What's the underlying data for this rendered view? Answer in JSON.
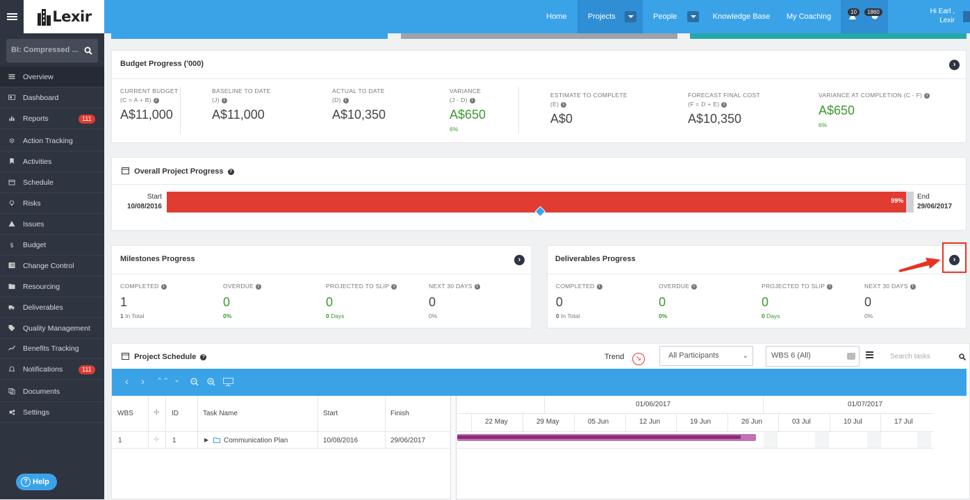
{
  "header": {
    "logo": "Lexir",
    "nav": {
      "home": "Home",
      "projects": "Projects",
      "people": "People",
      "knowledge": "Knowledge Base",
      "coaching": "My Coaching"
    },
    "badge_alerts": "10",
    "badge_notifications": "1860",
    "greeting": "Hi Earl ,",
    "user": "Lexir"
  },
  "sidebar": {
    "search_value": "BI: Compressed ...",
    "items": [
      {
        "label": "Overview",
        "icon": "list-icon"
      },
      {
        "label": "Dashboard",
        "icon": "dashboard-icon"
      },
      {
        "label": "Reports",
        "icon": "bar-chart-icon",
        "badge": "111"
      },
      {
        "label": "Action Tracking",
        "icon": "crosshair-icon"
      },
      {
        "label": "Activities",
        "icon": "bookmark-icon"
      },
      {
        "label": "Schedule",
        "icon": "calendar-icon"
      },
      {
        "label": "Risks",
        "icon": "lightbulb-icon"
      },
      {
        "label": "Issues",
        "icon": "warning-icon"
      },
      {
        "label": "Budget",
        "icon": "dollar-icon"
      },
      {
        "label": "Change Control",
        "icon": "list-alt-icon"
      },
      {
        "label": "Resourcing",
        "icon": "folder-icon"
      },
      {
        "label": "Deliverables",
        "icon": "truck-icon"
      },
      {
        "label": "Quality Management",
        "icon": "tag-icon"
      },
      {
        "label": "Benefits Tracking",
        "icon": "line-chart-icon"
      },
      {
        "label": "Notifications",
        "icon": "bell-icon",
        "badge": "111"
      },
      {
        "label": "Documents",
        "icon": "copy-icon"
      },
      {
        "label": "Settings",
        "icon": "cogs-icon"
      }
    ],
    "help": "Help"
  },
  "budget": {
    "title": "Budget Progress ('000)",
    "items": [
      {
        "label": "CURRENT BUDGET",
        "sub": "(C = A + B)",
        "value": "A$11,000"
      },
      {
        "label": "BASELINE TO DATE",
        "sub": "(J)",
        "value": "A$11,000"
      },
      {
        "label": "ACTUAL TO DATE",
        "sub": "(D)",
        "value": "A$10,350"
      },
      {
        "label": "VARIANCE",
        "sub": "(J - D)",
        "value": "A$650",
        "pct": "6%"
      },
      {
        "label": "ESTIMATE TO COMPLETE",
        "sub": "(E)",
        "value": "A$0"
      },
      {
        "label": "FORECAST FINAL COST",
        "sub": "(F = D + E)",
        "value": "A$10,350"
      },
      {
        "label": "VARIANCE AT COMPLETION (C - F)",
        "sub": "",
        "value": "A$650",
        "pct": "6%"
      }
    ]
  },
  "overall": {
    "title": "Overall Project Progress",
    "start_label": "Start",
    "start_date": "10/08/2016",
    "end_label": "End",
    "end_date": "29/06/2017",
    "progress": 0.99,
    "progress_text": "99%",
    "today_marker": 0.5
  },
  "milestones": {
    "title": "Milestones Progress",
    "items": [
      {
        "label": "COMPLETED",
        "value": "1",
        "sub_strong": "1",
        "sub": " In Total"
      },
      {
        "label": "OVERDUE",
        "value": "0",
        "sub_strong": "0%",
        "sub": ""
      },
      {
        "label": "PROJECTED TO SLIP",
        "value": "0",
        "sub_strong": "0",
        "sub": " Days"
      },
      {
        "label": "NEXT 30 DAYS",
        "value": "0",
        "sub_strong": "",
        "sub": "0%"
      }
    ]
  },
  "deliverables": {
    "title": "Deliverables Progress",
    "items": [
      {
        "label": "COMPLETED",
        "value": "0",
        "sub_strong": "0",
        "sub": " In Total"
      },
      {
        "label": "OVERDUE",
        "value": "0",
        "sub_strong": "0%",
        "sub": ""
      },
      {
        "label": "PROJECTED TO SLIP",
        "value": "0",
        "sub_strong": "0",
        "sub": " Days"
      },
      {
        "label": "NEXT 30 DAYS",
        "value": "0",
        "sub_strong": "",
        "sub": "0%"
      }
    ]
  },
  "schedule": {
    "title": "Project Schedule",
    "trend": "Trend",
    "participants": "All Participants",
    "wbs": "WBS 6 (All)",
    "search_placeholder": "Search tasks",
    "columns": {
      "wbs": "WBS",
      "id": "ID",
      "task": "Task Name",
      "start": "Start",
      "finish": "Finish"
    },
    "rows": [
      {
        "wbs": "1",
        "id": "1",
        "task": "Communication Plan",
        "start": "10/08/2016",
        "finish": "29/06/2017"
      }
    ],
    "months": [
      "01/06/2017",
      "01/07/2017"
    ],
    "weeks": [
      "22 May",
      "29 May",
      "05 Jun",
      "12 Jun",
      "19 Jun",
      "26 Jun",
      "03 Jul",
      "10 Jul",
      "17 Jul"
    ]
  },
  "colors": {
    "brand": "#3aa3e8",
    "sidebar": "#2f3441",
    "danger": "#e03c31",
    "success": "#3a9a2c"
  }
}
